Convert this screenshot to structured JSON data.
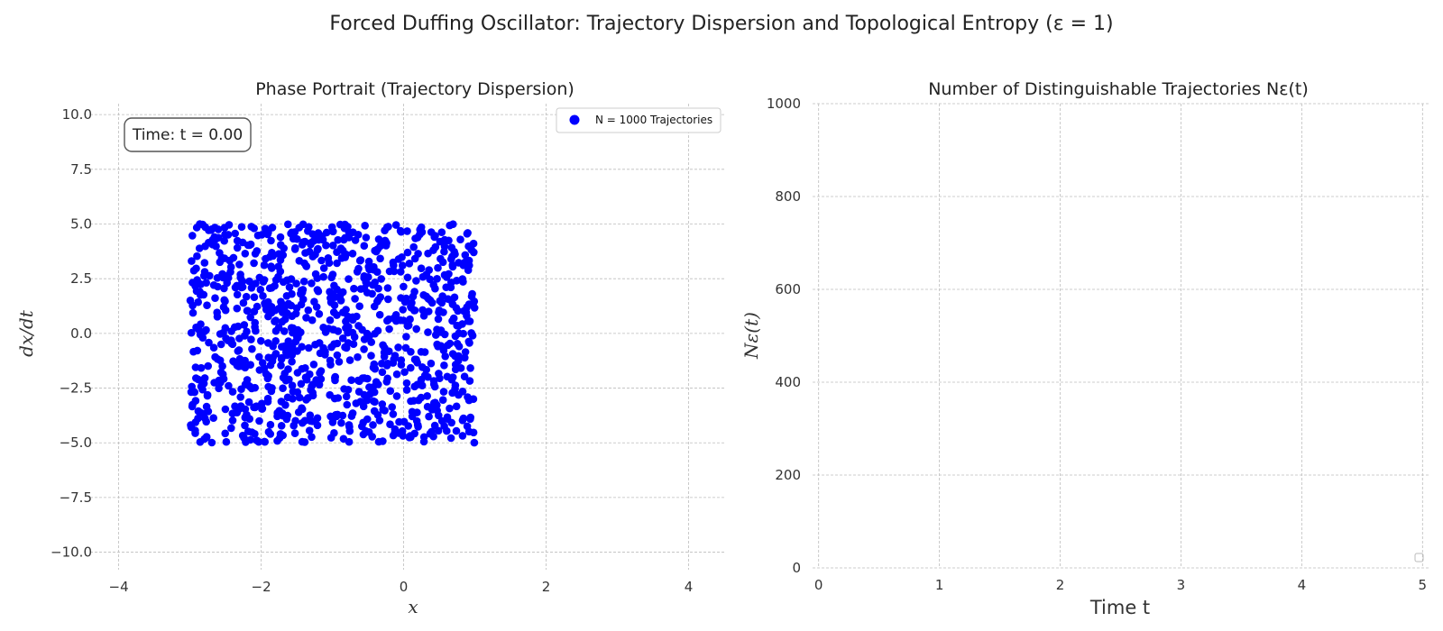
{
  "figure": {
    "title": "Forced Duffing Oscillator: Trajectory Dispersion and Topological Entropy (ε = 1)"
  },
  "colors": {
    "points": "#0000ff",
    "grid": "#bdbdbd",
    "text": "#222222"
  },
  "chart_data": [
    {
      "type": "scatter",
      "title": "Phase Portrait (Trajectory Dispersion)",
      "xlabel": "x",
      "ylabel": "dx/dt",
      "xlim": [
        -4.4,
        4.5
      ],
      "ylim": [
        -10.8,
        10.5
      ],
      "xticks": [
        -4,
        -2,
        0,
        2,
        4
      ],
      "xtick_labels": [
        "−4",
        "−2",
        "0",
        "2",
        "4"
      ],
      "yticks": [
        10,
        7.5,
        5,
        2.5,
        0,
        -2.5,
        -5,
        -7.5,
        -10
      ],
      "ytick_labels": [
        "10.0",
        "7.5",
        "5.0",
        "2.5",
        "0.0",
        "−2.5",
        "−5.0",
        "−7.5",
        "−10.0"
      ],
      "grid": true,
      "time_annotation": "Time: t = 0.00",
      "legend": {
        "position": "top-right",
        "label": "N = 1000 Trajectories"
      },
      "series": [
        {
          "name": "N = 1000 Trajectories",
          "n_points": 1000,
          "x_range": [
            -3,
            1
          ],
          "y_range": [
            -5,
            5
          ],
          "distribution": "uniform"
        }
      ]
    },
    {
      "type": "line",
      "title": "Number of Distinguishable Trajectories Nε(t)",
      "xlabel": "Time t",
      "ylabel": "Nε(t)",
      "xlim": [
        -0.05,
        5.05
      ],
      "ylim": [
        0,
        1000
      ],
      "xticks": [
        0,
        1,
        2,
        3,
        4,
        5
      ],
      "xtick_labels": [
        "0",
        "1",
        "2",
        "3",
        "4",
        "5"
      ],
      "yticks": [
        0,
        200,
        400,
        600,
        800,
        1000
      ],
      "ytick_labels": [
        "0",
        "200",
        "400",
        "600",
        "800",
        "1000"
      ],
      "grid": true,
      "series": []
    }
  ]
}
